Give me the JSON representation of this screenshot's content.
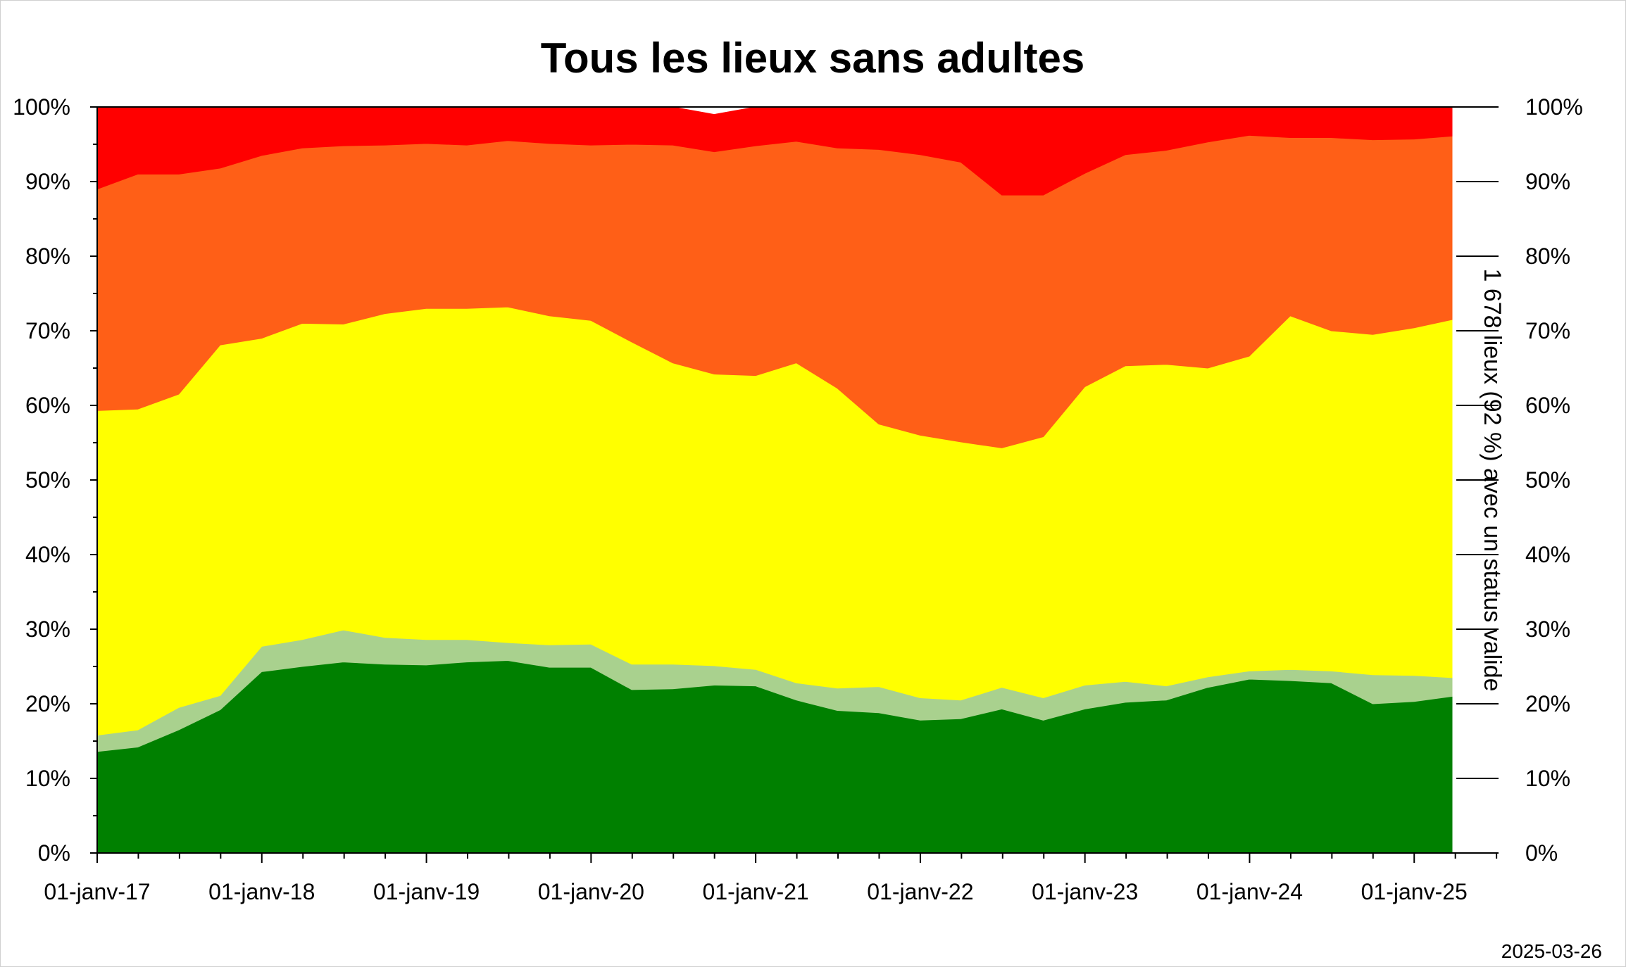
{
  "date_stamp": "2025-03-26",
  "chart_data": {
    "type": "area",
    "stacked": true,
    "percent": true,
    "title": "Tous les lieux sans adultes",
    "xlabel": "",
    "ylabel": "",
    "y2label": "1 678 lieux (92 %) avec un status valide",
    "ylim": [
      0,
      100
    ],
    "xlim": [
      "2017-01-01",
      "2025-03-26"
    ],
    "x_ticks": [
      "01-janv-17",
      "01-janv-18",
      "01-janv-19",
      "01-janv-20",
      "01-janv-21",
      "01-janv-22",
      "01-janv-23",
      "01-janv-24",
      "01-janv-25"
    ],
    "y_ticks": [
      "0%",
      "10%",
      "20%",
      "30%",
      "40%",
      "50%",
      "60%",
      "70%",
      "80%",
      "90%",
      "100%"
    ],
    "grid": false,
    "legend": "none",
    "colors": [
      "#008000",
      "#a9d18e",
      "#ffff00",
      "#ff5f17",
      "#ff0000"
    ],
    "x": [
      "2017-01-01",
      "2017-04-01",
      "2017-07-01",
      "2017-10-01",
      "2018-01-01",
      "2018-04-01",
      "2018-07-01",
      "2018-10-01",
      "2019-01-01",
      "2019-04-01",
      "2019-07-01",
      "2019-10-01",
      "2020-01-01",
      "2020-04-01",
      "2020-07-01",
      "2020-10-01",
      "2021-01-01",
      "2021-04-01",
      "2021-07-01",
      "2021-10-01",
      "2022-01-01",
      "2022-04-01",
      "2022-07-01",
      "2022-10-01",
      "2023-01-01",
      "2023-04-01",
      "2023-07-01",
      "2023-10-01",
      "2024-01-01",
      "2024-04-01",
      "2024-07-01",
      "2024-10-01",
      "2025-01-01",
      "2025-03-26"
    ],
    "series": [
      {
        "values": [
          13.6,
          14.2,
          16.5,
          19.2,
          24.3,
          25.0,
          25.6,
          25.3,
          25.2,
          25.6,
          25.8,
          24.9,
          24.9,
          21.9,
          22.0,
          22.5,
          22.4,
          20.5,
          19.1,
          18.8,
          17.8,
          18.0,
          19.3,
          17.8,
          19.3,
          20.2,
          20.5,
          22.2,
          23.3,
          23.1,
          22.8,
          20.0,
          20.3,
          21.0
        ]
      },
      {
        "values": [
          2.2,
          2.3,
          3.0,
          1.9,
          3.4,
          3.6,
          4.3,
          3.6,
          3.4,
          3.0,
          2.4,
          3.0,
          3.1,
          3.4,
          3.3,
          2.6,
          2.2,
          2.3,
          3.0,
          3.5,
          3.0,
          2.5,
          2.9,
          3.0,
          3.2,
          2.8,
          1.9,
          1.4,
          1.1,
          1.5,
          1.6,
          3.9,
          3.5,
          2.5
        ]
      },
      {
        "values": [
          43.5,
          43.0,
          42.0,
          47.0,
          41.3,
          42.4,
          41.0,
          43.4,
          44.4,
          44.4,
          45.0,
          44.1,
          43.4,
          43.2,
          40.4,
          39.1,
          39.4,
          42.9,
          40.2,
          35.2,
          35.2,
          34.6,
          32.1,
          35.0,
          40.0,
          42.3,
          43.1,
          41.4,
          42.2,
          47.4,
          45.6,
          45.6,
          46.6,
          48.0
        ]
      },
      {
        "values": [
          29.7,
          31.5,
          29.5,
          23.7,
          24.5,
          23.5,
          23.9,
          22.6,
          22.1,
          21.9,
          22.3,
          23.1,
          23.5,
          26.5,
          29.2,
          29.8,
          30.8,
          29.7,
          32.2,
          36.8,
          37.6,
          37.5,
          33.9,
          32.4,
          28.6,
          28.3,
          28.7,
          30.3,
          29.6,
          23.9,
          25.9,
          26.1,
          25.3,
          24.6
        ]
      },
      {
        "values": [
          11.0,
          9.0,
          9.0,
          8.2,
          6.5,
          5.5,
          5.2,
          5.1,
          4.9,
          5.1,
          4.5,
          4.9,
          5.1,
          5.0,
          5.1,
          5.0,
          5.2,
          4.6,
          5.5,
          5.7,
          6.4,
          7.4,
          11.8,
          11.8,
          8.9,
          6.4,
          5.8,
          4.7,
          3.8,
          4.1,
          4.1,
          4.4,
          4.3,
          3.9
        ]
      }
    ]
  }
}
